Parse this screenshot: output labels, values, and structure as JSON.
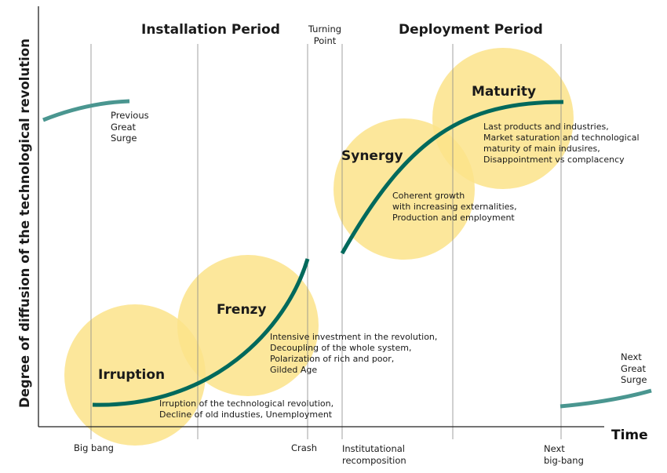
{
  "periods": {
    "installation": "Installation Period",
    "turning_point": [
      "Turning",
      "Point"
    ],
    "deployment": "Deployment Period"
  },
  "axes": {
    "y_label": "Degree of diffusion of the technological revolution",
    "x_label": "Time"
  },
  "phases": {
    "irruption": {
      "title": "Irruption",
      "description": [
        "Irruption of the technological revolution,",
        "Decline of old industies, Unemployment"
      ]
    },
    "frenzy": {
      "title": "Frenzy",
      "description": [
        "Intensive investment in the revolution,",
        "Decoupling of the whole system,",
        "Polarization of rich and poor,",
        "Gilded Age"
      ]
    },
    "synergy": {
      "title": "Synergy",
      "description": [
        "Coherent growth",
        "with increasing externalities,",
        "Production and employment"
      ]
    },
    "maturity": {
      "title": "Maturity",
      "description": [
        "Last products and industries,",
        "Market saturation and technological",
        "maturity of main indusires,",
        "Disappointment vs complacency"
      ]
    }
  },
  "surges": {
    "previous": [
      "Previous",
      "Great",
      "Surge"
    ],
    "next": [
      "Next",
      "Great",
      "Surge"
    ]
  },
  "events": {
    "big_bang": "Big bang",
    "crash": "Crash",
    "institutional": [
      "Institutational",
      "recomposition"
    ],
    "next_big_bang": [
      "Next",
      "big-bang"
    ]
  },
  "colors": {
    "circle_fill": "#fbe38a",
    "main_curve": "#00695c",
    "surge_curve": "#4a9690",
    "grid_line": "#8a8a8a",
    "axis": "#222222"
  }
}
